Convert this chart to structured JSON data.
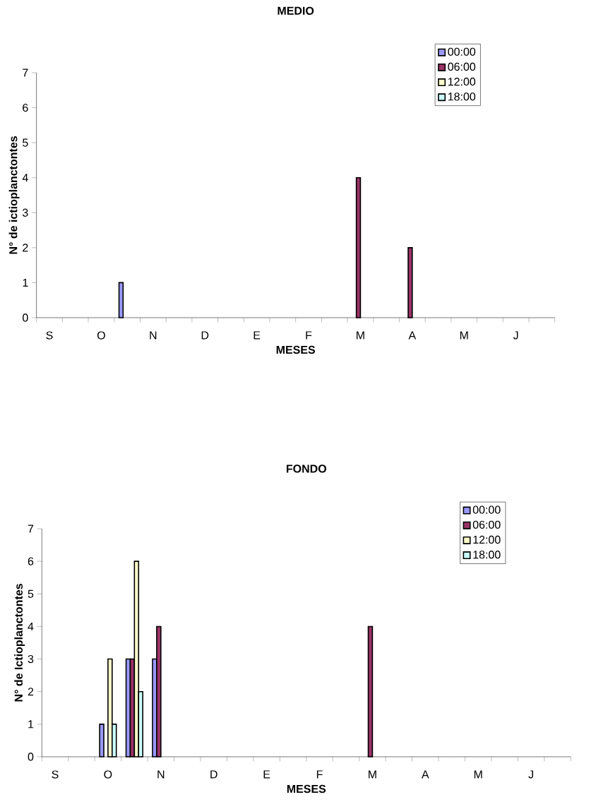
{
  "chart_data": [
    {
      "type": "bar",
      "title": "MEDIO",
      "xlabel": "MESES",
      "ylabel": "N° de ictioplanctontes",
      "categories": [
        "S",
        null,
        "O",
        null,
        "N",
        null,
        "D",
        null,
        "E",
        null,
        "F",
        null,
        "M",
        null,
        "A",
        null,
        "M",
        null,
        "J",
        null
      ],
      "series": [
        {
          "name": "00:00",
          "color": "#9999ff",
          "values": [
            null,
            null,
            null,
            1,
            null,
            null,
            null,
            null,
            null,
            null,
            null,
            null,
            null,
            null,
            null,
            null,
            null,
            null,
            null,
            null
          ]
        },
        {
          "name": "06:00",
          "color": "#993366",
          "values": [
            null,
            null,
            null,
            null,
            null,
            null,
            null,
            null,
            null,
            null,
            null,
            null,
            4,
            null,
            2,
            null,
            null,
            null,
            null,
            null
          ]
        },
        {
          "name": "12:00",
          "color": "#ffffcc",
          "values": [
            null,
            null,
            null,
            null,
            null,
            null,
            null,
            null,
            null,
            null,
            null,
            null,
            null,
            null,
            null,
            null,
            null,
            null,
            null,
            null
          ]
        },
        {
          "name": "18:00",
          "color": "#ccffff",
          "values": [
            null,
            null,
            null,
            null,
            null,
            null,
            null,
            null,
            null,
            null,
            null,
            null,
            null,
            null,
            null,
            null,
            null,
            null,
            null,
            null
          ]
        }
      ],
      "ylim": [
        0,
        7
      ],
      "yticks": [
        0,
        1,
        2,
        3,
        4,
        5,
        6,
        7
      ],
      "legend": "top right"
    },
    {
      "type": "bar",
      "title": "FONDO",
      "xlabel": "MESES",
      "ylabel": "N° de Ictioplanctontes",
      "categories": [
        "S",
        null,
        "O",
        null,
        "N",
        null,
        "D",
        null,
        "E",
        null,
        "F",
        null,
        "M",
        null,
        "A",
        null,
        "M",
        null,
        "J",
        null
      ],
      "series": [
        {
          "name": "00:00",
          "color": "#9999ff",
          "values": [
            null,
            null,
            1,
            3,
            3,
            null,
            null,
            null,
            null,
            null,
            null,
            null,
            null,
            null,
            null,
            null,
            null,
            null,
            null,
            null
          ]
        },
        {
          "name": "06:00",
          "color": "#993366",
          "values": [
            null,
            null,
            null,
            3,
            4,
            null,
            null,
            null,
            null,
            null,
            null,
            null,
            4,
            null,
            null,
            null,
            null,
            null,
            null,
            null
          ]
        },
        {
          "name": "12:00",
          "color": "#ffffcc",
          "values": [
            null,
            null,
            3,
            6,
            null,
            null,
            null,
            null,
            null,
            null,
            null,
            null,
            null,
            null,
            null,
            null,
            null,
            null,
            null,
            null
          ]
        },
        {
          "name": "18:00",
          "color": "#ccffff",
          "values": [
            null,
            null,
            1,
            2,
            null,
            null,
            null,
            null,
            null,
            null,
            null,
            null,
            null,
            null,
            null,
            null,
            null,
            null,
            null,
            null
          ]
        }
      ],
      "ylim": [
        0,
        7
      ],
      "yticks": [
        0,
        1,
        2,
        3,
        4,
        5,
        6,
        7
      ],
      "legend": "top right"
    }
  ]
}
